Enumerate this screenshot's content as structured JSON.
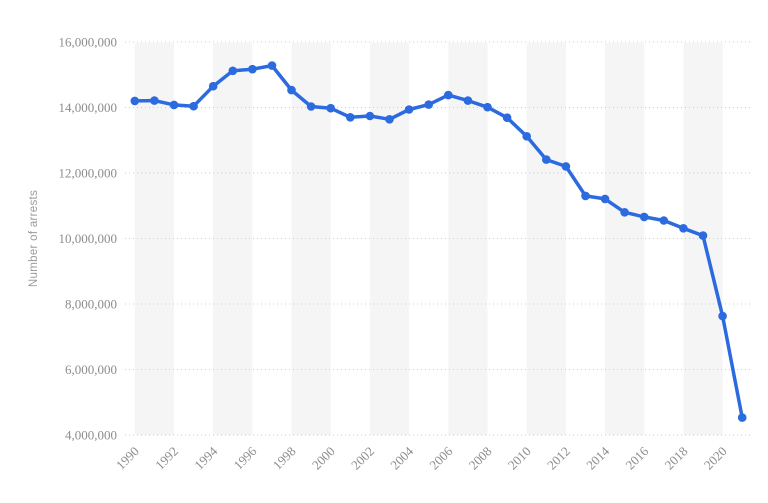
{
  "chart_data": {
    "type": "line",
    "title": "",
    "xlabel": "",
    "ylabel": "Number of arrests",
    "legend": "none",
    "grid": "horizontal-dotted",
    "ylim": [
      4000000,
      16000000
    ],
    "ytick_step": 2000000,
    "ytick_labels": [
      "4,000,000",
      "6,000,000",
      "8,000,000",
      "10,000,000",
      "12,000,000",
      "14,000,000",
      "16,000,000"
    ],
    "xtick_labels": [
      "1990",
      "1992",
      "1994",
      "1996",
      "1998",
      "2000",
      "2002",
      "2004",
      "2006",
      "2008",
      "2010",
      "2012",
      "2014",
      "2016",
      "2018",
      "2020"
    ],
    "x": [
      1990,
      1991,
      1992,
      1993,
      1994,
      1995,
      1996,
      1997,
      1998,
      1999,
      2000,
      2001,
      2002,
      2003,
      2004,
      2005,
      2006,
      2007,
      2008,
      2009,
      2010,
      2011,
      2012,
      2013,
      2014,
      2015,
      2016,
      2017,
      2018,
      2019,
      2020,
      2021
    ],
    "series": [
      {
        "name": "Number of arrests",
        "color": "#2c6ae0",
        "values": [
          14200000,
          14210000,
          14080000,
          14040000,
          14650000,
          15120000,
          15170000,
          15280000,
          14530000,
          14030000,
          13980000,
          13700000,
          13740000,
          13640000,
          13940000,
          14090000,
          14380000,
          14210000,
          14010000,
          13690000,
          13120000,
          12410000,
          12200000,
          11300000,
          11210000,
          10800000,
          10660000,
          10550000,
          10310000,
          10090000,
          7630000,
          4530000
        ]
      }
    ],
    "colors": {
      "background": "#ffffff",
      "plot_band": "#f5f5f5",
      "gridline": "#cccccc",
      "tick_text": "#8d8d8d",
      "axis_title_text": "#9a9a9a"
    }
  }
}
